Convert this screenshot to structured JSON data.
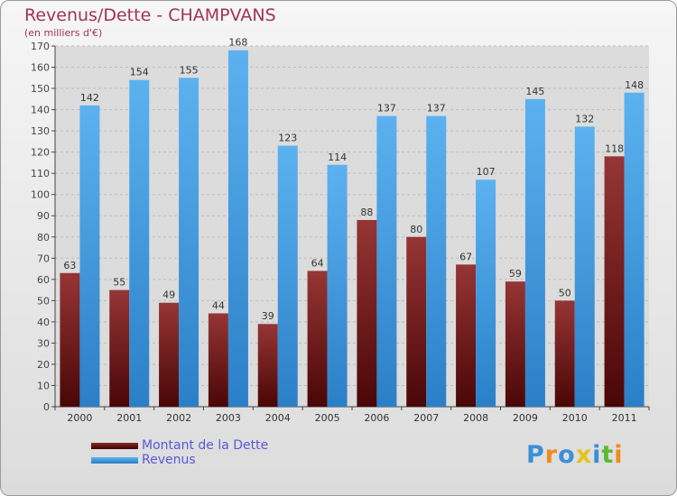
{
  "title": "Revenus/Dette - CHAMPVANS",
  "subtitle": "(en milliers d'€)",
  "logo": [
    "P",
    "r",
    "o",
    "x",
    "i",
    "t",
    "i"
  ],
  "legend": {
    "debt": "Montant de la Dette",
    "revenue": "Revenus"
  },
  "colors": {
    "debt": "#7a1e1e",
    "revenue": "#4aa3e8",
    "title": "#a0335a",
    "legend_text": "#5b57d9"
  },
  "chart_data": {
    "type": "bar",
    "title": "Revenus/Dette - CHAMPVANS",
    "subtitle": "(en milliers d'€)",
    "categories": [
      "2000",
      "2001",
      "2002",
      "2003",
      "2004",
      "2005",
      "2006",
      "2007",
      "2008",
      "2009",
      "2010",
      "2011"
    ],
    "series": [
      {
        "name": "Montant de la Dette",
        "values": [
          63,
          55,
          49,
          44,
          39,
          64,
          88,
          80,
          67,
          59,
          50,
          118
        ]
      },
      {
        "name": "Revenus",
        "values": [
          142,
          154,
          155,
          168,
          123,
          114,
          137,
          137,
          107,
          145,
          132,
          148
        ]
      }
    ],
    "ylim": [
      0,
      170
    ],
    "yticks": [
      0,
      10,
      20,
      30,
      40,
      50,
      60,
      70,
      80,
      90,
      100,
      110,
      120,
      130,
      140,
      150,
      160,
      170
    ],
    "grid": true,
    "legend_position": "bottom-left"
  }
}
